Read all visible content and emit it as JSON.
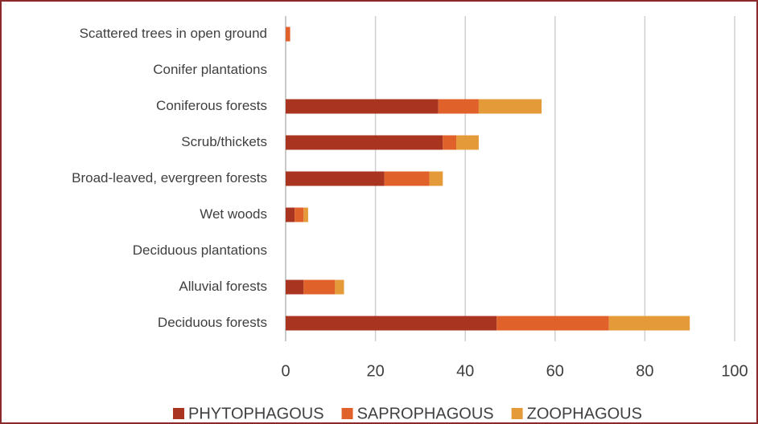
{
  "chart_data": {
    "type": "stacked_barh",
    "categories": [
      "Scattered trees in open ground",
      "Conifer plantations",
      "Coniferous forests",
      "Scrub/thickets",
      "Broad-leaved,  evergreen forests",
      "Wet woods",
      "Deciduous plantations",
      "Alluvial forests",
      "Deciduous forests"
    ],
    "series": [
      {
        "name": "PHYTOPHAGOUS",
        "color": "#a93520",
        "values": [
          0,
          0,
          34,
          35,
          22,
          2,
          0,
          4,
          47
        ]
      },
      {
        "name": "SAPROPHAGOUS",
        "color": "#e0622a",
        "values": [
          1,
          0,
          9,
          3,
          10,
          2,
          0,
          7,
          25
        ]
      },
      {
        "name": "ZOOPHAGOUS",
        "color": "#e59a3a",
        "values": [
          0,
          0,
          14,
          5,
          3,
          1,
          0,
          2,
          18
        ]
      }
    ],
    "xlim": [
      0,
      100
    ],
    "xticks": [
      0,
      20,
      40,
      60,
      80,
      100
    ],
    "grid": true,
    "legend": "bottom"
  }
}
